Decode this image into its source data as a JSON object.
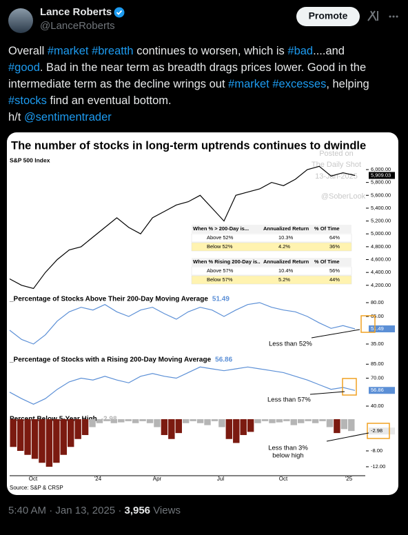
{
  "tweet": {
    "name": "Lance Roberts",
    "handle": "@LanceRoberts",
    "button": "Promote",
    "text": [
      "Overall #market #breatth continues to worsen, which is #bad....and",
      "#good.  Bad in the near term as breadth drags prices lower. Good in the",
      "intermediate term as the decline wrings out #market #excesses, helping",
      "#stocks find an eventual bottom.",
      "h/t @sentimentrader"
    ],
    "time": "5:40 AM",
    "separator": "·",
    "date": "Jan 13, 2025",
    "views": "3,956",
    "views_label": "Views"
  },
  "image": {
    "title": "The number of stocks in long-term uptrends continues to dwindle",
    "source": "Source: S&P & CRSP",
    "watermark": [
      "Posted on",
      "The Daily Shot",
      "13-Jan-2025",
      "@SoberLook"
    ],
    "x_labels": [
      "Oct",
      "'24",
      "Apr",
      "Jul",
      "Oct",
      "'25"
    ],
    "panels": [
      {
        "type": "line",
        "title": "S&P 500 Index",
        "color": "#000000",
        "values": [
          4300,
          4200,
          4150,
          4400,
          4600,
          4750,
          4800,
          4950,
          5100,
          5250,
          5100,
          5000,
          5250,
          5350,
          5450,
          5500,
          5600,
          5400,
          5200,
          5600,
          5650,
          5700,
          5800,
          5750,
          5850,
          6000,
          6050,
          5900,
          5950,
          5909.03
        ],
        "value_label": "5,909.03",
        "ylim": [
          4080,
          6150
        ],
        "yticks": [
          {
            "value": 4200,
            "label": "4,200.00"
          },
          {
            "value": 4400,
            "label": "4,400.00"
          },
          {
            "value": 4600,
            "label": "4,600.00"
          },
          {
            "value": 4800,
            "label": "4,800.00"
          },
          {
            "value": 5000,
            "label": "5,000.00"
          },
          {
            "value": 5200,
            "label": "5,200.00"
          },
          {
            "value": 5400,
            "label": "5,400.00"
          },
          {
            "value": 5600,
            "label": "5,600.00"
          },
          {
            "value": 5800,
            "label": "5,800.00"
          },
          {
            "value": 6000,
            "label": "6,000.00"
          }
        ]
      },
      {
        "type": "line",
        "title": "_Percentage of Stocks Above Their 200-Day Moving Average",
        "color": "#5b8fd6",
        "values": [
          50,
          40,
          35,
          45,
          60,
          70,
          75,
          72,
          78,
          70,
          65,
          72,
          75,
          68,
          62,
          70,
          75,
          72,
          65,
          72,
          78,
          80,
          75,
          72,
          70,
          65,
          58,
          52,
          55,
          51.49
        ],
        "ylim": [
          25.25,
          86.75
        ],
        "yticks": [
          {
            "value": 35,
            "label": "35.00"
          },
          {
            "value": 65,
            "label": "65.00"
          },
          {
            "value": 80,
            "label": "80.00"
          }
        ],
        "annotation": [
          "Less than 52%"
        ]
      },
      {
        "type": "line",
        "title": "_Percentage of Stocks with a Rising 200-Day Moving Average",
        "color": "#5b8fd6",
        "values": [
          55,
          48,
          42,
          48,
          58,
          66,
          70,
          68,
          72,
          68,
          65,
          72,
          75,
          72,
          70,
          76,
          82,
          80,
          78,
          80,
          82,
          80,
          78,
          76,
          72,
          68,
          63,
          58,
          60,
          56.86
        ],
        "ylim": [
          34.1,
          92.6
        ],
        "yticks": [
          {
            "value": 40,
            "label": "40.00"
          },
          {
            "value": 70,
            "label": "70.00"
          },
          {
            "value": 85,
            "label": "85.00"
          }
        ],
        "annotation": [
          "Less than 57%"
        ]
      },
      {
        "type": "bar",
        "title": "Percent Below 5-Year High",
        "values": [
          -7,
          -8,
          -9,
          -10,
          -11,
          -12,
          -11,
          -9,
          -7,
          -5,
          -4,
          -2,
          -1,
          -0.5,
          -1,
          -0.8,
          -0.5,
          -1,
          -0.5,
          -1,
          -2,
          -4,
          -5,
          -3.5,
          -1,
          -0.5,
          -1,
          -1.5,
          -0.5,
          -2,
          -5,
          -6,
          -4,
          -3.2,
          -1,
          -0.5,
          -1,
          -0.8,
          -0.5,
          -1.5,
          -1,
          -0.5,
          -1,
          -0.5,
          -2,
          -3.5,
          -2.5,
          -2.98
        ],
        "colors": [
          "#7b1a10",
          "#7b1a10",
          "#7b1a10",
          "#7b1a10",
          "#7b1a10",
          "#7b1a10",
          "#7b1a10",
          "#7b1a10",
          "#7b1a10",
          "#7b1a10",
          "#7b1a10",
          "#b5b5b5",
          "#b5b5b5",
          "#b5b5b5",
          "#b5b5b5",
          "#b5b5b5",
          "#b5b5b5",
          "#b5b5b5",
          "#b5b5b5",
          "#b5b5b5",
          "#b5b5b5",
          "#7b1a10",
          "#7b1a10",
          "#7b1a10",
          "#b5b5b5",
          "#b5b5b5",
          "#b5b5b5",
          "#b5b5b5",
          "#b5b5b5",
          "#b5b5b5",
          "#7b1a10",
          "#7b1a10",
          "#7b1a10",
          "#7b1a10",
          "#b5b5b5",
          "#b5b5b5",
          "#b5b5b5",
          "#b5b5b5",
          "#b5b5b5",
          "#b5b5b5",
          "#b5b5b5",
          "#b5b5b5",
          "#b5b5b5",
          "#b5b5b5",
          "#b5b5b5",
          "#7b1a10",
          "#b5b5b5",
          "#b5b5b5"
        ],
        "ylim": [
          -14.26,
          0.7
        ],
        "yticks": [
          {
            "value": -8,
            "label": "-8.00"
          },
          {
            "value": -12,
            "label": "-12.00"
          }
        ],
        "annotation": [
          "Less than 3%",
          "below high"
        ]
      }
    ],
    "tables": [
      {
        "header": [
          "When % > 200-Day is...",
          "Annualized Return",
          "% Of Time"
        ],
        "rows": [
          [
            "Above 52%",
            "10.3%",
            "64%"
          ],
          [
            "Below 52%",
            "4.2%",
            "36%"
          ]
        ]
      },
      {
        "header": [
          "When % Rising 200-Day is..",
          "Annualized Return",
          "% Of Time"
        ],
        "rows": [
          [
            "Above 57%",
            "10.4%",
            "56%"
          ],
          [
            "Below 57%",
            "5.2%",
            "44%"
          ]
        ]
      }
    ]
  }
}
